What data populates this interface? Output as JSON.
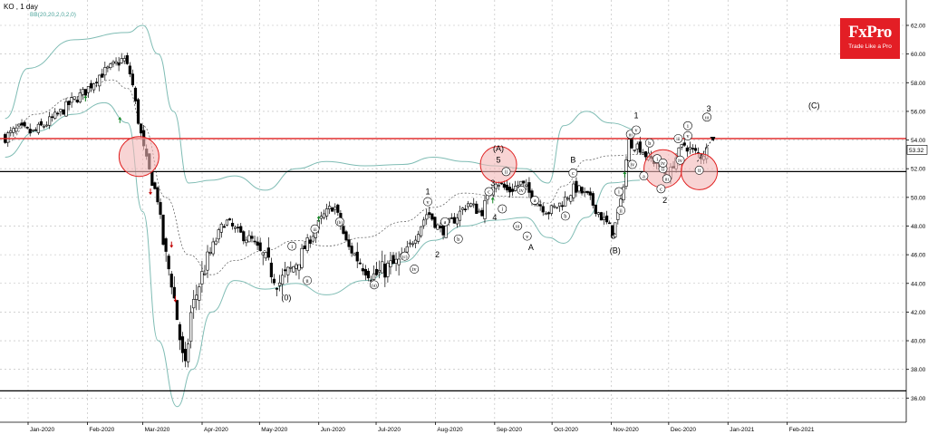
{
  "header": {
    "symbol": "KO",
    "timeframe": "1 day",
    "indicator": "BB(20,20,2,0,2,0)"
  },
  "logo": {
    "name": "FxPro",
    "tagline": "Trade Like a Pro"
  },
  "colors": {
    "resistance": "#e02020",
    "support": "#000000",
    "bollinger": "#7fbcb4",
    "circle_fill": "#f4b8b8",
    "circle_stroke": "#e02020",
    "logo_bg": "#e31e25",
    "grid": "#b8b8b8",
    "candle_up": "#ffffff",
    "candle_down": "#000000"
  },
  "chart_data": {
    "type": "candlestick",
    "ylim": [
      35,
      63
    ],
    "y_ticks": [
      "62.00",
      "60.00",
      "58.00",
      "56.00",
      "54.00",
      "52.00",
      "50.00",
      "48.00",
      "46.00",
      "44.00",
      "42.00",
      "40.00",
      "38.00",
      "36.00"
    ],
    "x_ticks": [
      "Jan-2020",
      "Feb-2020",
      "Mar-2020",
      "Apr-2020",
      "May-2020",
      "Jun-2020",
      "Jul-2020",
      "Aug-2020",
      "Sep-2020",
      "Oct-2020",
      "Nov-2020",
      "Dec-2020",
      "Jan-2021",
      "Feb-2021"
    ],
    "current_price": "53.32",
    "horizontal_lines": [
      {
        "kind": "resistance",
        "value": 54.1
      },
      {
        "kind": "support",
        "value": 51.8
      },
      {
        "kind": "support",
        "value": 36.5
      }
    ],
    "close_path": [
      [
        "2019-12-20",
        54.2
      ],
      [
        "2019-12-27",
        54.8
      ],
      [
        "2020-01-03",
        54.5
      ],
      [
        "2020-01-10",
        55.1
      ],
      [
        "2020-01-17",
        55.8
      ],
      [
        "2020-01-24",
        56.7
      ],
      [
        "2020-01-31",
        57.4
      ],
      [
        "2020-02-07",
        58.5
      ],
      [
        "2020-02-14",
        59.1
      ],
      [
        "2020-02-20",
        59.7
      ],
      [
        "2020-02-24",
        58.4
      ],
      [
        "2020-02-27",
        55.8
      ],
      [
        "2020-03-02",
        53.0
      ],
      [
        "2020-03-05",
        51.5
      ],
      [
        "2020-03-09",
        49.8
      ],
      [
        "2020-03-12",
        46.4
      ],
      [
        "2020-03-16",
        44.2
      ],
      [
        "2020-03-19",
        41.5
      ],
      [
        "2020-03-23",
        37.6
      ],
      [
        "2020-03-26",
        41.8
      ],
      [
        "2020-03-31",
        44.2
      ],
      [
        "2020-04-06",
        46.4
      ],
      [
        "2020-04-13",
        48.4
      ],
      [
        "2020-04-20",
        47.5
      ],
      [
        "2020-04-27",
        47.0
      ],
      [
        "2020-05-04",
        45.6
      ],
      [
        "2020-05-11",
        44.0
      ],
      [
        "2020-05-18",
        45.0
      ],
      [
        "2020-05-26",
        46.8
      ],
      [
        "2020-06-03",
        48.6
      ],
      [
        "2020-06-09",
        49.5
      ],
      [
        "2020-06-16",
        46.6
      ],
      [
        "2020-06-23",
        45.5
      ],
      [
        "2020-06-30",
        44.5
      ],
      [
        "2020-07-07",
        45.1
      ],
      [
        "2020-07-14",
        45.5
      ],
      [
        "2020-07-21",
        47.2
      ],
      [
        "2020-07-28",
        49.0
      ],
      [
        "2020-08-04",
        47.6
      ],
      [
        "2020-08-11",
        48.5
      ],
      [
        "2020-08-18",
        49.6
      ],
      [
        "2020-08-25",
        48.9
      ],
      [
        "2020-09-01",
        51.3
      ],
      [
        "2020-09-08",
        50.4
      ],
      [
        "2020-09-15",
        51.0
      ],
      [
        "2020-09-22",
        49.8
      ],
      [
        "2020-09-29",
        49.0
      ],
      [
        "2020-10-06",
        49.6
      ],
      [
        "2020-10-13",
        50.7
      ],
      [
        "2020-10-20",
        50.0
      ],
      [
        "2020-10-27",
        48.6
      ],
      [
        "2020-11-02",
        47.6
      ],
      [
        "2020-11-06",
        49.6
      ],
      [
        "2020-11-10",
        53.9
      ],
      [
        "2020-11-16",
        53.5
      ],
      [
        "2020-11-20",
        52.8
      ],
      [
        "2020-11-25",
        52.4
      ],
      [
        "2020-12-01",
        51.4
      ],
      [
        "2020-12-04",
        52.6
      ],
      [
        "2020-12-09",
        53.7
      ],
      [
        "2020-12-15",
        53.1
      ],
      [
        "2020-12-18",
        52.9
      ],
      [
        "2020-12-21",
        53.32
      ]
    ],
    "bollinger": {
      "upper": [
        [
          0,
          55.5
        ],
        [
          30,
          59.0
        ],
        [
          90,
          61.0
        ],
        [
          160,
          61.5
        ],
        [
          180,
          62.0
        ],
        [
          200,
          60.0
        ],
        [
          220,
          56.0
        ],
        [
          240,
          51.0
        ],
        [
          270,
          51.2
        ],
        [
          300,
          51.5
        ],
        [
          340,
          50.5
        ],
        [
          380,
          52.0
        ],
        [
          420,
          52.5
        ],
        [
          470,
          52.2
        ],
        [
          520,
          52.3
        ],
        [
          560,
          52.8
        ],
        [
          600,
          52.5
        ],
        [
          640,
          52.2
        ],
        [
          680,
          52.0
        ],
        [
          710,
          51.0
        ],
        [
          730,
          55.0
        ],
        [
          760,
          56.0
        ],
        [
          790,
          55.2
        ],
        [
          830,
          54.7
        ]
      ],
      "middle": [
        [
          0,
          53.8
        ],
        [
          40,
          55.8
        ],
        [
          90,
          57.0
        ],
        [
          140,
          58.2
        ],
        [
          160,
          57.6
        ],
        [
          180,
          55.0
        ],
        [
          210,
          50.0
        ],
        [
          240,
          46.0
        ],
        [
          270,
          44.6
        ],
        [
          300,
          45.6
        ],
        [
          340,
          46.3
        ],
        [
          380,
          47.0
        ],
        [
          420,
          46.6
        ],
        [
          470,
          47.2
        ],
        [
          520,
          48.3
        ],
        [
          560,
          49.3
        ],
        [
          600,
          50.3
        ],
        [
          640,
          50.1
        ],
        [
          680,
          50.0
        ],
        [
          710,
          49.6
        ],
        [
          730,
          50.8
        ],
        [
          760,
          52.6
        ],
        [
          790,
          52.9
        ],
        [
          830,
          53.0
        ]
      ],
      "lower": [
        [
          0,
          52.8
        ],
        [
          40,
          54.6
        ],
        [
          90,
          55.8
        ],
        [
          130,
          56.6
        ],
        [
          160,
          55.2
        ],
        [
          180,
          49.0
        ],
        [
          200,
          40.0
        ],
        [
          225,
          35.4
        ],
        [
          245,
          38.0
        ],
        [
          270,
          42.0
        ],
        [
          300,
          44.2
        ],
        [
          340,
          43.6
        ],
        [
          380,
          44.0
        ],
        [
          420,
          43.2
        ],
        [
          470,
          44.2
        ],
        [
          520,
          45.5
        ],
        [
          560,
          47.0
        ],
        [
          600,
          48.0
        ],
        [
          640,
          48.4
        ],
        [
          680,
          48.6
        ],
        [
          710,
          47.2
        ],
        [
          730,
          46.8
        ],
        [
          760,
          48.6
        ],
        [
          790,
          51.0
        ],
        [
          830,
          51.2
        ]
      ]
    },
    "annotations": [
      {
        "label": "(0)",
        "date": "2020-05-15",
        "price": 43.0
      },
      {
        "label": "(a)",
        "date": "2020-06-30",
        "price": 43.9
      },
      {
        "label": "(b)",
        "date": "2020-06-12",
        "price": 48.3
      },
      {
        "label": "(c)",
        "date": "2020-07-16",
        "price": 45.9
      },
      {
        "label": "i",
        "date": "2020-05-18",
        "price": 46.6
      },
      {
        "label": "ii",
        "date": "2020-05-26",
        "price": 44.2
      },
      {
        "label": "iii",
        "date": "2020-05-30",
        "price": 47.8
      },
      {
        "label": "iv",
        "date": "2020-07-21",
        "price": 45.0
      },
      {
        "label": "v",
        "date": "2020-07-28",
        "price": 49.7
      },
      {
        "label": "1",
        "date": "2020-07-28",
        "price": 50.4
      },
      {
        "label": "2",
        "date": "2020-08-02",
        "price": 46.0
      },
      {
        "label": "a",
        "date": "2020-08-06",
        "price": 48.3
      },
      {
        "label": "b",
        "date": "2020-08-13",
        "price": 47.1
      },
      {
        "label": "c",
        "date": "2020-08-29",
        "price": 50.4
      },
      {
        "label": "3",
        "date": "2020-08-31",
        "price": 51.0
      },
      {
        "label": "4",
        "date": "2020-09-01",
        "price": 48.6
      },
      {
        "label": "5",
        "date": "2020-09-03",
        "price": 52.6
      },
      {
        "label": "(A)",
        "date": "2020-09-03",
        "price": 53.4
      },
      {
        "label": "i",
        "date": "2020-09-05",
        "price": 49.2
      },
      {
        "label": "ii",
        "date": "2020-09-07",
        "price": 51.8
      },
      {
        "label": "iii",
        "date": "2020-09-13",
        "price": 48.0
      },
      {
        "label": "iv",
        "date": "2020-09-15",
        "price": 50.5
      },
      {
        "label": "v",
        "date": "2020-09-18",
        "price": 47.3
      },
      {
        "label": "a",
        "date": "2020-09-22",
        "price": 49.8
      },
      {
        "label": "b",
        "date": "2020-10-08",
        "price": 48.7
      },
      {
        "label": "c",
        "date": "2020-10-12",
        "price": 51.7
      },
      {
        "label": "B",
        "date": "2020-10-12",
        "price": 52.6
      },
      {
        "label": "A",
        "date": "2020-09-20",
        "price": 46.5
      },
      {
        "label": "C",
        "date": "2020-11-02",
        "price": 47.3
      },
      {
        "label": "(B)",
        "date": "2020-11-03",
        "price": 46.3
      },
      {
        "label": "i",
        "date": "2020-11-05",
        "price": 50.4
      },
      {
        "label": "ii",
        "date": "2020-11-06",
        "price": 49.1
      },
      {
        "label": "iii",
        "date": "2020-11-11",
        "price": 54.4
      },
      {
        "label": "iv",
        "date": "2020-11-12",
        "price": 52.3
      },
      {
        "label": "v",
        "date": "2020-11-14",
        "price": 54.7
      },
      {
        "label": "1",
        "date": "2020-11-14",
        "price": 55.7
      },
      {
        "label": "a",
        "date": "2020-11-18",
        "price": 51.5
      },
      {
        "label": "b",
        "date": "2020-11-21",
        "price": 53.8
      },
      {
        "label": "c",
        "date": "2020-11-27",
        "price": 50.6
      },
      {
        "label": "i",
        "date": "2020-11-25",
        "price": 52.7
      },
      {
        "label": "ii",
        "date": "2020-11-28",
        "price": 52.0
      },
      {
        "label": "iii",
        "date": "2020-11-30",
        "price": 51.3
      },
      {
        "label": "iv",
        "date": "2020-11-28",
        "price": 52.4
      },
      {
        "label": "2",
        "date": "2020-11-29",
        "price": 49.8
      },
      {
        "label": "iii",
        "date": "2020-12-06",
        "price": 54.1
      },
      {
        "label": "iv",
        "date": "2020-12-07",
        "price": 52.6
      },
      {
        "label": "i",
        "date": "2020-12-11",
        "price": 55.0
      },
      {
        "label": "v",
        "date": "2020-12-11",
        "price": 54.3
      },
      {
        "label": "ii",
        "date": "2020-12-17",
        "price": 51.9
      },
      {
        "label": "iii",
        "date": "2020-12-21",
        "price": 55.6
      },
      {
        "label": "3",
        "date": "2020-12-22",
        "price": 56.2
      },
      {
        "label": "(C)",
        "date": "2021-02-15",
        "price": 56.4
      }
    ]
  }
}
